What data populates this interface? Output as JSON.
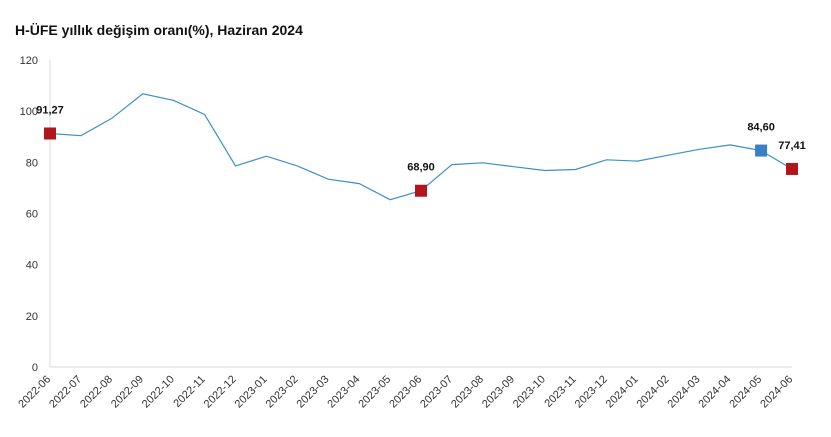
{
  "chart_data": {
    "type": "line",
    "title": "H-ÜFE yıllık değişim oranı(%), Haziran 2024",
    "xlabel": "",
    "ylabel": "",
    "ylim": [
      0,
      120
    ],
    "yticks": [
      "0",
      "20",
      "40",
      "60",
      "80",
      "100",
      "120"
    ],
    "grid": false,
    "legend": "none",
    "categories": [
      "2022-06",
      "2022-07",
      "2022-08",
      "2022-09",
      "2022-10",
      "2022-11",
      "2022-12",
      "2023-01",
      "2023-02",
      "2023-03",
      "2023-04",
      "2023-05",
      "2023-06",
      "2023-07",
      "2023-08",
      "2023-09",
      "2023-10",
      "2023-11",
      "2023-12",
      "2024-01",
      "2024-02",
      "2024-03",
      "2024-04",
      "2024-05",
      "2024-06"
    ],
    "series": [
      {
        "values": [
          91.27,
          90.4,
          97.2,
          106.8,
          104.2,
          98.7,
          78.6,
          82.4,
          78.6,
          73.4,
          71.7,
          65.4,
          68.9,
          79.1,
          79.8,
          78.3,
          76.8,
          77.2,
          81.0,
          80.5,
          82.8,
          85.1,
          86.8,
          84.6,
          77.41
        ],
        "color": "#3c8fc8"
      }
    ],
    "markers": [
      {
        "index": 0,
        "label": "91,27",
        "color": "#b2151c"
      },
      {
        "index": 12,
        "label": "68,90",
        "color": "#b2151c"
      },
      {
        "index": 23,
        "label": "84,60",
        "color": "#3a7fc4"
      },
      {
        "index": 24,
        "label": "77,41",
        "color": "#b2151c"
      }
    ]
  }
}
